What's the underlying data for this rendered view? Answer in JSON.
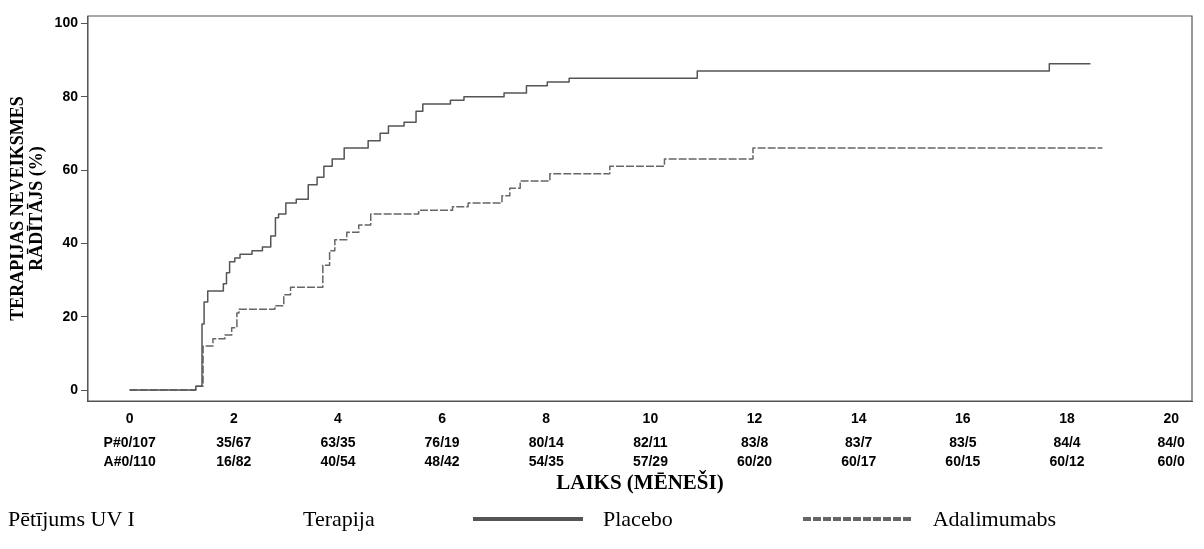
{
  "chart_data": {
    "type": "step",
    "title": "Pētījums UV I",
    "xlabel": "LAIKS (MĒNEŠI)",
    "ylabel": "TERAPIJAS NEVEIKSMES RĀDĪTĀJS (%)",
    "legend_title": "Terapija",
    "legend": "bottom",
    "grid": false,
    "xlim": [
      -0.8,
      20.4
    ],
    "xticks": [
      0,
      2,
      4,
      6,
      8,
      10,
      12,
      14,
      16,
      18,
      20
    ],
    "ylim": [
      -3,
      102
    ],
    "yticks": [
      0,
      20,
      40,
      60,
      80,
      100
    ],
    "annotations": [
      "P#0/107",
      "35/67",
      "63/35",
      "76/19",
      "80/14",
      "82/11",
      "83/8",
      "83/7",
      "83/5",
      "84/4",
      "84/0",
      "A#0/110",
      "16/82",
      "40/54",
      "48/42",
      "54/35",
      "57/29",
      "60/20",
      "60/17",
      "60/15",
      "60/12",
      "60/0"
    ],
    "series": [
      {
        "name": "Placebo",
        "color": "#555555",
        "line_style": "solid",
        "x": [
          0,
          1.27,
          1.39,
          1.43,
          1.5,
          1.8,
          1.86,
          1.92,
          2.02,
          2.12,
          2.35,
          2.55,
          2.71,
          2.8,
          2.86,
          3.0,
          3.2,
          3.43,
          3.6,
          3.73,
          3.89,
          4.12,
          4.58,
          4.81,
          4.97,
          5.27,
          5.5,
          5.63,
          6.16,
          6.42,
          7.19,
          7.62,
          8.02,
          8.44,
          10.9,
          17.66,
          18.45
        ],
        "values": [
          0,
          1,
          18,
          24,
          27,
          29,
          32,
          35,
          36,
          37,
          38,
          39,
          42,
          47,
          48,
          51,
          52,
          56,
          58,
          61,
          63,
          66,
          68,
          70,
          72,
          73,
          76,
          78,
          79,
          80,
          81,
          83,
          84,
          85,
          87,
          89,
          89
        ]
      },
      {
        "name": "Adalimumabs",
        "color": "#666666",
        "line_style": "dashed",
        "x": [
          0,
          1.27,
          1.41,
          1.6,
          1.83,
          1.96,
          2.06,
          2.1,
          2.79,
          2.96,
          3.09,
          3.71,
          3.84,
          3.94,
          4.17,
          4.4,
          4.63,
          5.55,
          6.2,
          6.5,
          7.15,
          7.3,
          7.5,
          8.07,
          9.22,
          10.27,
          11.97,
          18.68
        ],
        "values": [
          0,
          1,
          12,
          14,
          15,
          17,
          21,
          22,
          23,
          26,
          28,
          34,
          38,
          41,
          43,
          45,
          48,
          49,
          50,
          51,
          53,
          55,
          57,
          59,
          61,
          63,
          66,
          66
        ]
      }
    ]
  }
}
